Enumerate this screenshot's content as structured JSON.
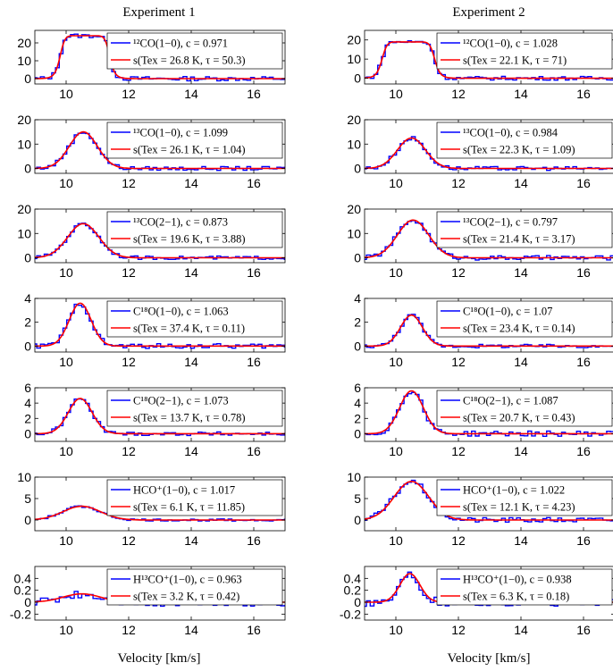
{
  "figure": {
    "columns": [
      {
        "title": "Experiment 1",
        "xlabel": "Velocity [km/s]"
      },
      {
        "title": "Experiment 2",
        "xlabel": "Velocity [km/s]"
      }
    ],
    "colors": {
      "observed": "#0000ff",
      "model": "#ff0000",
      "axis": "#000000"
    }
  },
  "chart_data": [
    {
      "type": "line",
      "column": 1,
      "row": 1,
      "xlim": [
        9,
        17
      ],
      "ylim": [
        -3,
        27
      ],
      "yticks": [
        0,
        10,
        20
      ],
      "xticks": [
        10,
        12,
        14,
        16
      ],
      "line": {
        "center": 10.6,
        "amp": 24,
        "width": 0.8,
        "shape": "flat",
        "noise": 1.2
      },
      "legend": [
        {
          "series": "observed",
          "text": "¹²CO(1−0), c = 0.971"
        },
        {
          "series": "model",
          "text": "s(Tex = 26.8 K, τ = 50.3)"
        }
      ]
    },
    {
      "type": "line",
      "column": 2,
      "row": 1,
      "xlim": [
        9,
        17
      ],
      "ylim": [
        -3,
        25
      ],
      "yticks": [
        0,
        10,
        20
      ],
      "xticks": [
        10,
        12,
        14,
        16
      ],
      "line": {
        "center": 10.4,
        "amp": 19,
        "width": 0.85,
        "shape": "flat",
        "noise": 1.0
      },
      "legend": [
        {
          "series": "observed",
          "text": "¹²CO(1−0), c = 1.028"
        },
        {
          "series": "model",
          "text": "s(Tex = 22.1 K, τ = 71)"
        }
      ]
    },
    {
      "type": "line",
      "column": 1,
      "row": 2,
      "xlim": [
        9,
        17
      ],
      "ylim": [
        -2,
        20
      ],
      "yticks": [
        0,
        10,
        20
      ],
      "xticks": [
        10,
        12,
        14,
        16
      ],
      "line": {
        "center": 10.55,
        "amp": 15,
        "width": 0.45,
        "shape": "gauss",
        "noise": 0.8
      },
      "legend": [
        {
          "series": "observed",
          "text": "¹³CO(1−0), c = 1.099"
        },
        {
          "series": "model",
          "text": "s(Tex = 26.1 K, τ = 1.04)"
        }
      ]
    },
    {
      "type": "line",
      "column": 2,
      "row": 2,
      "xlim": [
        9,
        17
      ],
      "ylim": [
        -2,
        20
      ],
      "yticks": [
        0,
        10,
        20
      ],
      "xticks": [
        10,
        12,
        14,
        16
      ],
      "line": {
        "center": 10.5,
        "amp": 12.5,
        "width": 0.45,
        "shape": "gauss",
        "noise": 0.8
      },
      "legend": [
        {
          "series": "observed",
          "text": "¹³CO(1−0), c = 0.984"
        },
        {
          "series": "model",
          "text": "s(Tex = 22.3 K, τ = 1.09)"
        }
      ]
    },
    {
      "type": "line",
      "column": 1,
      "row": 3,
      "xlim": [
        9,
        17
      ],
      "ylim": [
        -2,
        20
      ],
      "yticks": [
        0,
        10,
        20
      ],
      "xticks": [
        10,
        12,
        14,
        16
      ],
      "line": {
        "center": 10.55,
        "amp": 14,
        "width": 0.5,
        "shape": "gauss",
        "noise": 0.7
      },
      "legend": [
        {
          "series": "observed",
          "text": "¹³CO(2−1), c = 0.873"
        },
        {
          "series": "model",
          "text": "s(Tex = 19.6 K, τ = 3.88)"
        }
      ]
    },
    {
      "type": "line",
      "column": 2,
      "row": 3,
      "xlim": [
        9,
        17
      ],
      "ylim": [
        -2,
        20
      ],
      "yticks": [
        0,
        10,
        20
      ],
      "xticks": [
        10,
        12,
        14,
        16
      ],
      "line": {
        "center": 10.55,
        "amp": 15.5,
        "width": 0.5,
        "shape": "gauss",
        "noise": 0.9
      },
      "legend": [
        {
          "series": "observed",
          "text": "¹³CO(2−1), c = 0.797"
        },
        {
          "series": "model",
          "text": "s(Tex = 21.4 K, τ = 3.17)"
        }
      ]
    },
    {
      "type": "line",
      "column": 1,
      "row": 4,
      "xlim": [
        9,
        17
      ],
      "ylim": [
        -0.5,
        4
      ],
      "yticks": [
        0,
        2,
        4
      ],
      "xticks": [
        10,
        12,
        14,
        16
      ],
      "line": {
        "center": 10.45,
        "amp": 3.6,
        "width": 0.35,
        "shape": "gauss",
        "noise": 0.2
      },
      "legend": [
        {
          "series": "observed",
          "text": "C¹⁸O(1−0), c = 1.063"
        },
        {
          "series": "model",
          "text": "s(Tex = 37.4 K, τ = 0.11)"
        }
      ]
    },
    {
      "type": "line",
      "column": 2,
      "row": 4,
      "xlim": [
        9,
        17
      ],
      "ylim": [
        -0.5,
        4
      ],
      "yticks": [
        0,
        2,
        4
      ],
      "xticks": [
        10,
        12,
        14,
        16
      ],
      "line": {
        "center": 10.5,
        "amp": 2.6,
        "width": 0.35,
        "shape": "gauss",
        "noise": 0.15
      },
      "legend": [
        {
          "series": "observed",
          "text": "C¹⁸O(1−0), c = 1.07"
        },
        {
          "series": "model",
          "text": "s(Tex = 23.4 K, τ = 0.14)"
        }
      ]
    },
    {
      "type": "line",
      "column": 1,
      "row": 5,
      "xlim": [
        9,
        17
      ],
      "ylim": [
        -1,
        6
      ],
      "yticks": [
        0,
        2,
        4,
        6
      ],
      "xticks": [
        10,
        12,
        14,
        16
      ],
      "line": {
        "center": 10.45,
        "amp": 4.6,
        "width": 0.38,
        "shape": "gauss",
        "noise": 0.25
      },
      "legend": [
        {
          "series": "observed",
          "text": "C¹⁸O(2−1), c = 1.073"
        },
        {
          "series": "model",
          "text": "s(Tex = 13.7 K, τ = 0.78)"
        }
      ]
    },
    {
      "type": "line",
      "column": 2,
      "row": 5,
      "xlim": [
        9,
        17
      ],
      "ylim": [
        -1,
        6
      ],
      "yticks": [
        0,
        2,
        4,
        6
      ],
      "xticks": [
        10,
        12,
        14,
        16
      ],
      "line": {
        "center": 10.5,
        "amp": 5.6,
        "width": 0.38,
        "shape": "gauss",
        "noise": 0.35
      },
      "legend": [
        {
          "series": "observed",
          "text": "C¹⁸O(2−1), c = 1.087"
        },
        {
          "series": "model",
          "text": "s(Tex = 20.7 K, τ = 0.43)"
        }
      ]
    },
    {
      "type": "line",
      "column": 1,
      "row": 6,
      "xlim": [
        9,
        17
      ],
      "ylim": [
        -2.5,
        10
      ],
      "yticks": [
        0,
        5,
        10
      ],
      "xticks": [
        10,
        12,
        14,
        16
      ],
      "line": {
        "center": 10.5,
        "amp": 3.2,
        "width": 0.6,
        "shape": "gauss",
        "noise": 0.25
      },
      "legend": [
        {
          "series": "observed",
          "text": "HCO⁺(1−0), c = 1.017"
        },
        {
          "series": "model",
          "text": "s(Tex = 6.1 K, τ = 11.85)"
        }
      ]
    },
    {
      "type": "line",
      "column": 2,
      "row": 6,
      "xlim": [
        9,
        17
      ],
      "ylim": [
        -2.5,
        10
      ],
      "yticks": [
        0,
        5,
        10
      ],
      "xticks": [
        10,
        12,
        14,
        16
      ],
      "line": {
        "center": 10.5,
        "amp": 9,
        "width": 0.55,
        "shape": "gauss",
        "noise": 0.6
      },
      "legend": [
        {
          "series": "observed",
          "text": "HCO⁺(1−0), c = 1.022"
        },
        {
          "series": "model",
          "text": "s(Tex = 12.1 K, τ = 4.23)"
        }
      ]
    },
    {
      "type": "line",
      "column": 1,
      "row": 7,
      "xlim": [
        9,
        17
      ],
      "ylim": [
        -0.3,
        0.6
      ],
      "yticks": [
        -0.2,
        0,
        0.2,
        0.4
      ],
      "xticks": [
        10,
        12,
        14,
        16
      ],
      "line": {
        "center": 10.5,
        "amp": 0.14,
        "width": 0.6,
        "shape": "gauss",
        "noise": 0.07
      },
      "legend": [
        {
          "series": "observed",
          "text": "H¹³CO⁺(1−0), c = 0.963"
        },
        {
          "series": "model",
          "text": "s(Tex = 3.2 K, τ = 0.42)"
        }
      ]
    },
    {
      "type": "line",
      "column": 2,
      "row": 7,
      "xlim": [
        9,
        17
      ],
      "ylim": [
        -0.3,
        0.6
      ],
      "yticks": [
        -0.2,
        0,
        0.2,
        0.4
      ],
      "xticks": [
        10,
        12,
        14,
        16
      ],
      "line": {
        "center": 10.45,
        "amp": 0.48,
        "width": 0.32,
        "shape": "gauss",
        "noise": 0.07
      },
      "legend": [
        {
          "series": "observed",
          "text": "H¹³CO⁺(1−0), c = 0.938"
        },
        {
          "series": "model",
          "text": "s(Tex = 6.3 K, τ = 0.18)"
        }
      ]
    }
  ]
}
